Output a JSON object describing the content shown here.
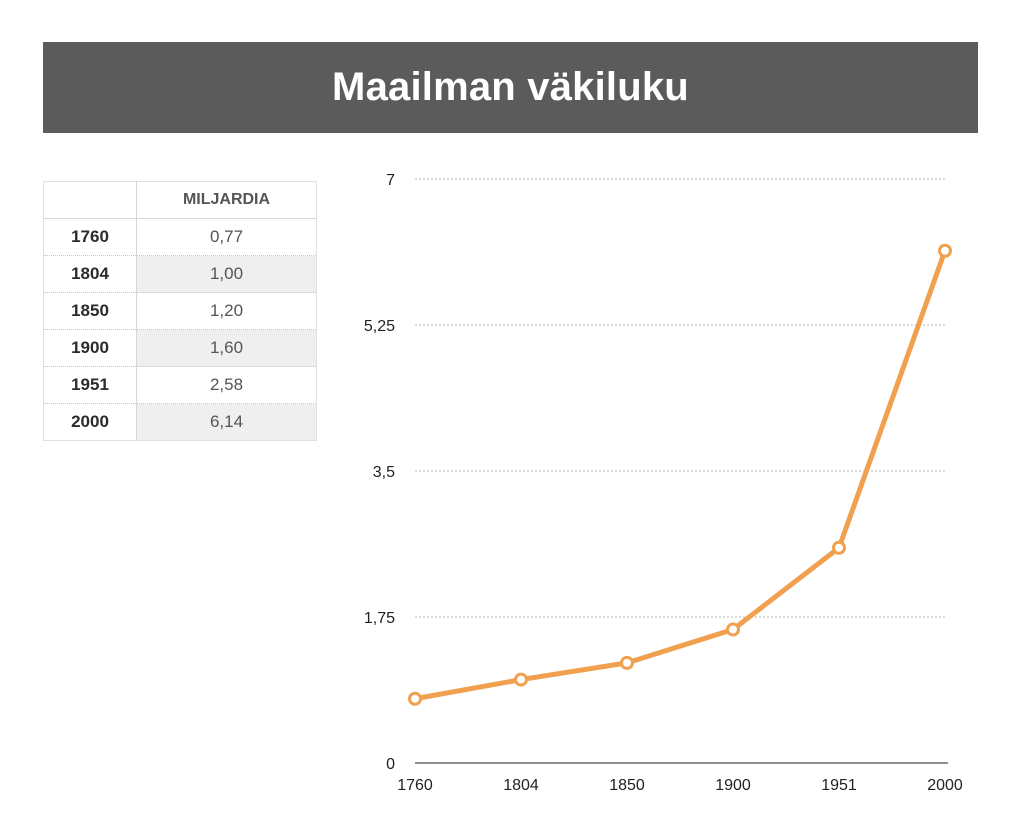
{
  "title": "Maailman väkiluku",
  "table": {
    "header_year": "",
    "header_value": "MILJARDIA",
    "rows": [
      {
        "year": "1760",
        "value": "0,77"
      },
      {
        "year": "1804",
        "value": "1,00"
      },
      {
        "year": "1850",
        "value": "1,20"
      },
      {
        "year": "1900",
        "value": "1,60"
      },
      {
        "year": "1951",
        "value": "2,58"
      },
      {
        "year": "2000",
        "value": "6,14"
      }
    ]
  },
  "colors": {
    "title_background": "#5b5b5b",
    "line": "#f0a04e",
    "grid": "#b5b5b5"
  },
  "chart_data": {
    "type": "line",
    "title": "",
    "xlabel": "",
    "ylabel": "",
    "categories": [
      "1760",
      "1804",
      "1850",
      "1900",
      "1951",
      "2000"
    ],
    "series": [
      {
        "values": [
          0.77,
          1.0,
          1.2,
          1.6,
          2.58,
          6.14
        ]
      }
    ],
    "ylim": [
      0,
      7
    ],
    "yticks": [
      0,
      1.75,
      3.5,
      5.25,
      7
    ],
    "ytick_labels": [
      "0",
      "1,75",
      "3,5",
      "5,25",
      "7"
    ],
    "grid": true,
    "legend": "none"
  }
}
